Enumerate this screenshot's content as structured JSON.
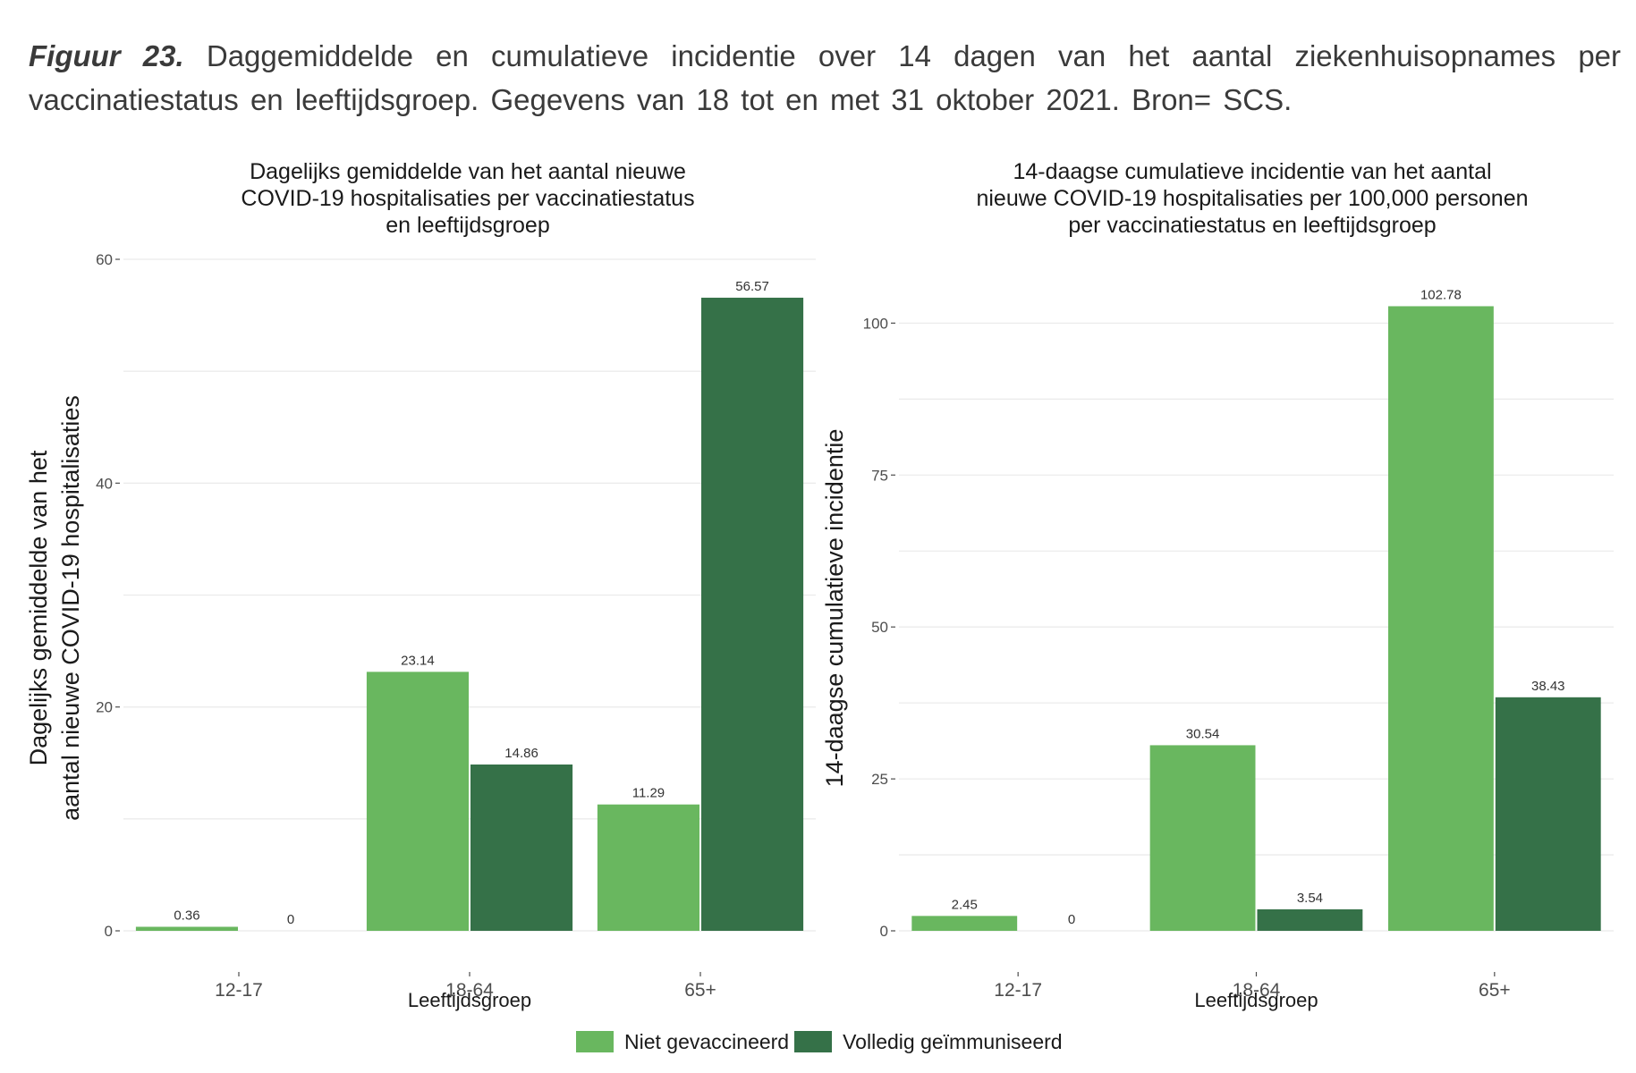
{
  "caption": {
    "label": "Figuur 23.",
    "text": "Daggemiddelde  en cumulatieve  incidentie  over 14 dagen van het aantal ziekenhuisopnames  per vaccinatiestatus en leeftijdsgroep. Gegevens van 18 tot en met 31 oktober 2021. Bron= SCS."
  },
  "colors": {
    "niet": "#69b75f",
    "volledig": "#357148",
    "grid": "#ebebeb",
    "tick": "#4d4d4d"
  },
  "legend": [
    {
      "label": "Niet gevaccineerd",
      "color": "#69b75f"
    },
    {
      "label": "Volledig geïmmuniseerd",
      "color": "#357148"
    }
  ],
  "chart_data": [
    {
      "type": "bar",
      "title_lines": [
        "Dagelijks gemiddelde van het aantal nieuwe",
        "COVID-19 hospitalisaties per vaccinatiestatus",
        "en leeftijdsgroep"
      ],
      "ylabel_lines": [
        "Dagelijks gemiddelde van het",
        "aantal nieuwe COVID-19 hospitalisaties"
      ],
      "xlabel": "Leeftijdsgroep",
      "categories": [
        "12-17",
        "18-64",
        "65+"
      ],
      "series": [
        {
          "name": "Niet gevaccineerd",
          "values": [
            0.36,
            23.14,
            11.29
          ],
          "labels": [
            "0.36",
            "23.14",
            "11.29"
          ]
        },
        {
          "name": "Volledig geïmmuniseerd",
          "values": [
            0,
            14.86,
            56.57
          ],
          "labels": [
            "0",
            "14.86",
            "56.57"
          ]
        }
      ],
      "ylim": [
        0,
        60
      ],
      "yticks": [
        0,
        20,
        40,
        60
      ],
      "grid": true
    },
    {
      "type": "bar",
      "title_lines": [
        "14-daagse cumulatieve incidentie van het aantal",
        "nieuwe COVID-19 hospitalisaties per 100,000 personen",
        "per vaccinatiestatus en leeftijdsgroep"
      ],
      "ylabel_lines": [
        "14-daagse cumulatieve incidentie"
      ],
      "xlabel": "Leeftijdsgroep",
      "categories": [
        "12-17",
        "18-64",
        "65+"
      ],
      "series": [
        {
          "name": "Niet gevaccineerd",
          "values": [
            2.45,
            30.54,
            102.78
          ],
          "labels": [
            "2.45",
            "30.54",
            "102.78"
          ]
        },
        {
          "name": "Volledig geïmmuniseerd",
          "values": [
            0,
            3.54,
            38.43
          ],
          "labels": [
            "0",
            "3.54",
            "38.43"
          ]
        }
      ],
      "ylim": [
        0,
        110.5
      ],
      "yticks": [
        0,
        25,
        50,
        75,
        100
      ],
      "grid": true
    }
  ]
}
